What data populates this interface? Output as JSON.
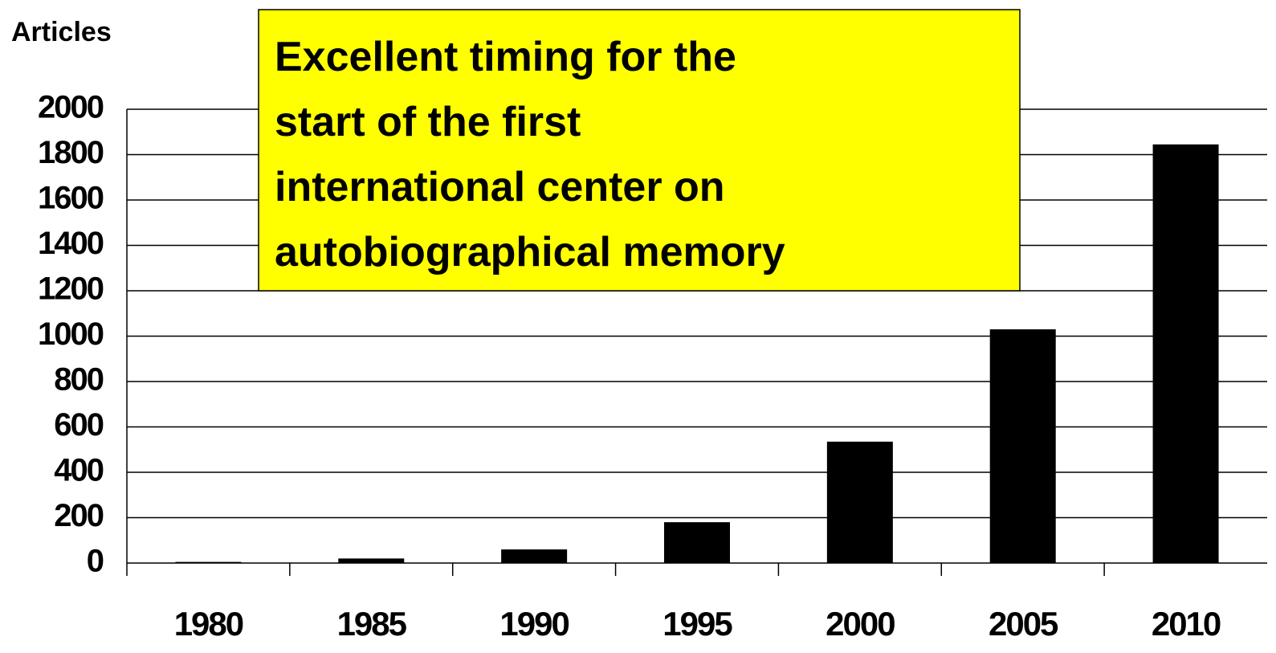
{
  "chart_data": {
    "type": "bar",
    "y_label": "Articles",
    "annotation": [
      "Excellent timing for the",
      "start of the first",
      "international center on",
      "autobiographical memory"
    ],
    "categories": [
      "1980",
      "1985",
      "1990",
      "1995",
      "2000",
      "2005",
      "2010"
    ],
    "values": [
      5,
      20,
      60,
      180,
      535,
      1030,
      1845
    ],
    "color": "#000000",
    "ylim": [
      0,
      2000
    ],
    "yticks": [
      0,
      200,
      400,
      600,
      800,
      1000,
      1200,
      1400,
      1600,
      1800,
      2000
    ],
    "grid": true
  }
}
